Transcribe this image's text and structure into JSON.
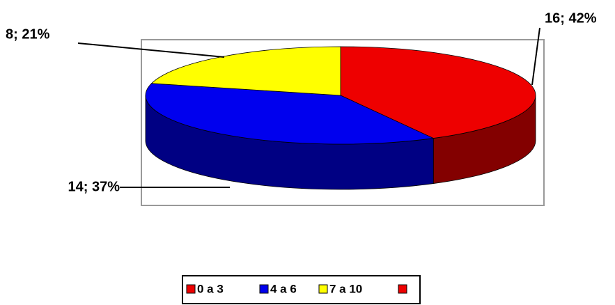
{
  "chart_data": {
    "type": "pie3d",
    "categories": [
      "0 a 3",
      "4 a 6",
      "7 a 10"
    ],
    "values": [
      16,
      14,
      8
    ],
    "value_labels": [
      "16; 42%",
      "14; 37%",
      "8; 21%"
    ],
    "colors": [
      "#ee0000",
      "#0000ee",
      "#ffff00"
    ],
    "legend": "bottom"
  }
}
